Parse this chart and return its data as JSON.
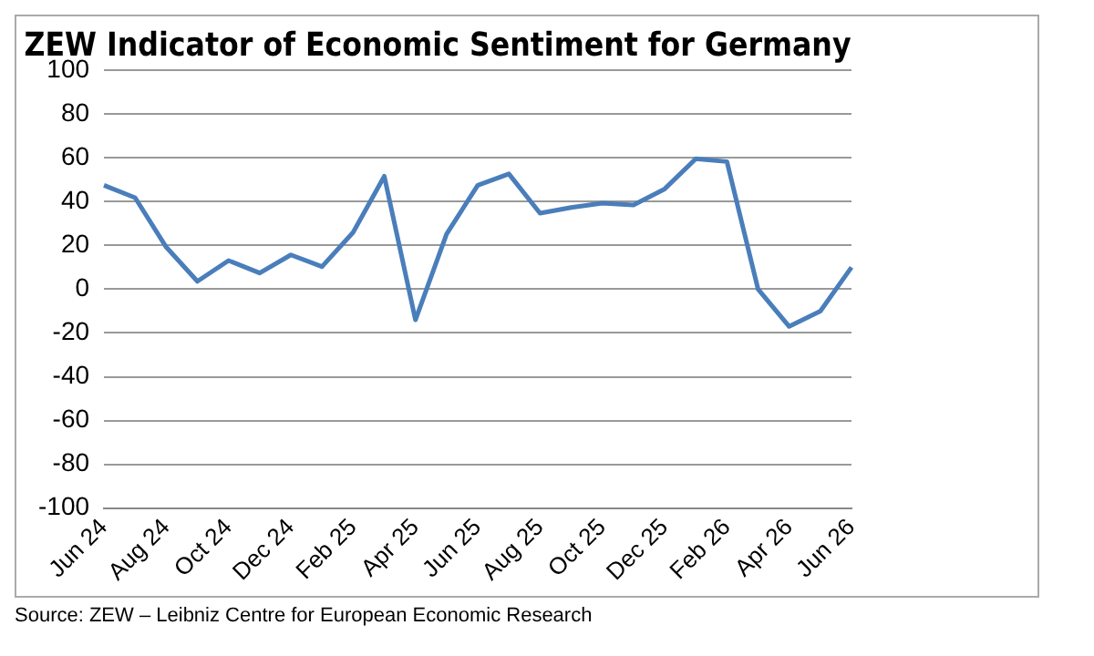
{
  "chart_data": {
    "type": "line",
    "title": "ZEW Indicator of Economic Sentiment for Germany",
    "categories": [
      "Jun 24",
      null,
      "Aug 24",
      null,
      "Oct 24",
      null,
      "Dec 24",
      null,
      "Feb 25",
      null,
      "Apr 25",
      null,
      "Jun 25",
      null,
      "Aug 25",
      null,
      "Oct 25",
      null,
      "Dec 25",
      null,
      "Feb 26",
      null,
      "Apr 26",
      null,
      "Jun 26"
    ],
    "series": [
      {
        "color": "#4a7ebb",
        "values": [
          47.5,
          41.8,
          19.2,
          3.6,
          13.1,
          7.4,
          15.7,
          10.3,
          26,
          51.6,
          -14,
          25.2,
          47.5,
          52.7,
          34.7,
          37.3,
          39.3,
          38.5,
          45.8,
          59.6,
          58.3,
          0,
          -17,
          -10,
          10
        ]
      }
    ],
    "ylim": [
      -100,
      100
    ],
    "yticks": [
      -100,
      -80,
      -60,
      -40,
      -20,
      0,
      20,
      40,
      60,
      80,
      100
    ],
    "grid": "y",
    "legend": false,
    "marker": "none",
    "line_style": "solid",
    "annotations": [
      "Source: ZEW – Leibniz Centre for European Economic Research"
    ]
  }
}
